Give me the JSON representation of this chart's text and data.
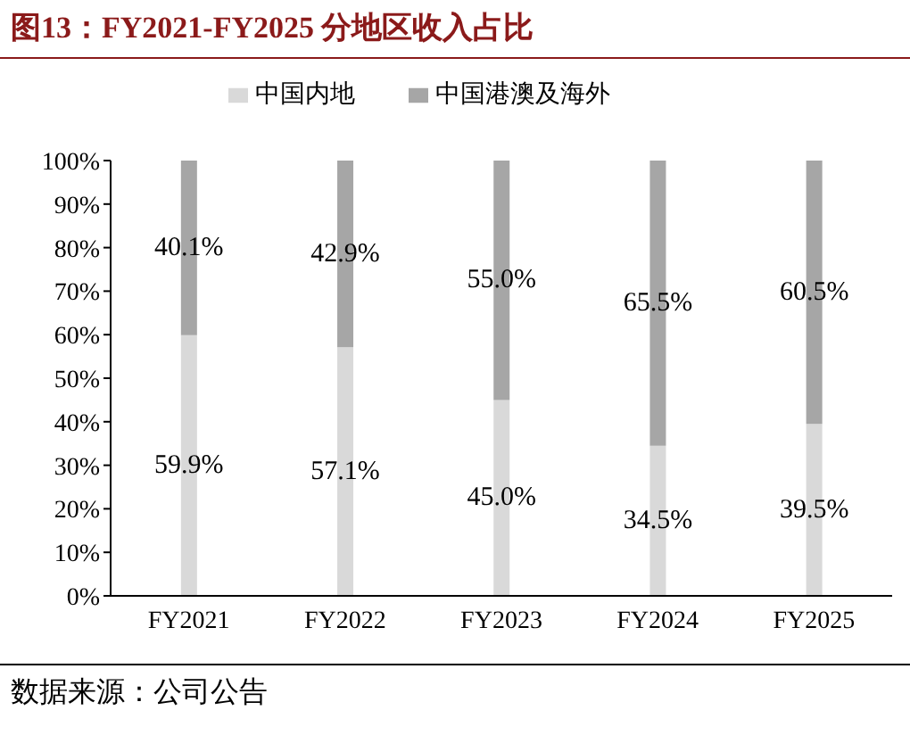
{
  "chart_data": {
    "type": "bar",
    "title": "图13：FY2021-FY2025 分地区收入占比",
    "categories": [
      "FY2021",
      "FY2022",
      "FY2023",
      "FY2024",
      "FY2025"
    ],
    "stacked": true,
    "series": [
      {
        "name": "中国内地",
        "color": "#d9d9d9",
        "values": [
          59.9,
          57.1,
          45.0,
          34.5,
          39.5
        ],
        "value_labels": [
          "59.9%",
          "57.1%",
          "45.0%",
          "34.5%",
          "39.5%"
        ]
      },
      {
        "name": "中国港澳及海外",
        "color": "#a6a6a6",
        "values": [
          40.1,
          42.9,
          55.0,
          65.5,
          60.5
        ],
        "value_labels": [
          "40.1%",
          "42.9%",
          "55.0%",
          "65.5%",
          "60.5%"
        ]
      }
    ],
    "ylim": [
      0,
      100
    ],
    "yticks": [
      {
        "value": 0,
        "label": "0%"
      },
      {
        "value": 10,
        "label": "10%"
      },
      {
        "value": 20,
        "label": "20%"
      },
      {
        "value": 30,
        "label": "30%"
      },
      {
        "value": 40,
        "label": "40%"
      },
      {
        "value": 50,
        "label": "50%"
      },
      {
        "value": 60,
        "label": "60%"
      },
      {
        "value": 70,
        "label": "70%"
      },
      {
        "value": 80,
        "label": "80%"
      },
      {
        "value": 90,
        "label": "90%"
      },
      {
        "value": 100,
        "label": "100%"
      }
    ],
    "legend": "top",
    "grid": false,
    "annotations": [
      "数据来源：公司公告"
    ]
  }
}
